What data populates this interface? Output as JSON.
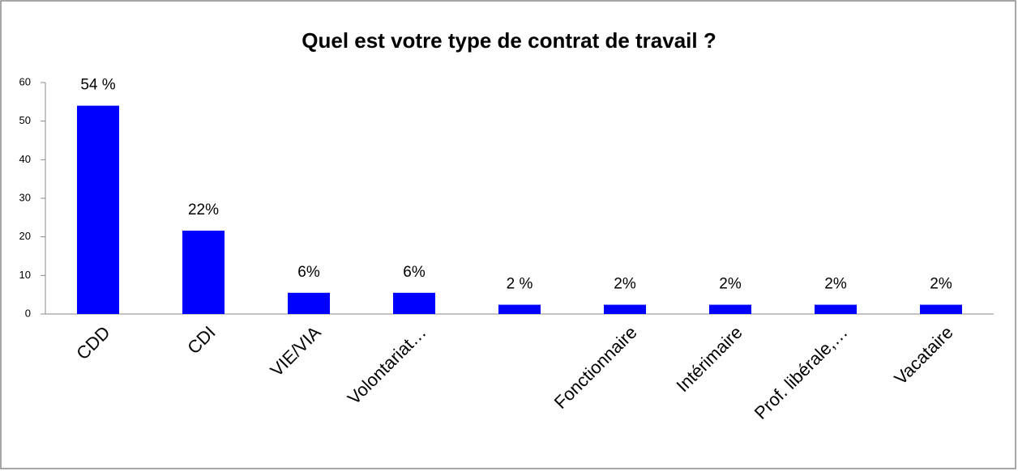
{
  "chart_data": {
    "type": "bar",
    "title": "Quel est votre type de contrat de travail ?",
    "categories": [
      "CDD",
      "CDI",
      "VIE/VIA",
      "Volontariat…",
      null,
      "Fonctionnaire",
      "Intérimaire",
      "Prof. libérale,…",
      "Vacataire"
    ],
    "values": [
      54,
      21.6,
      5.5,
      5.5,
      2.4,
      2.4,
      2.4,
      2.4,
      2.4
    ],
    "value_labels": [
      "54 %",
      "22%",
      "6%",
      "6%",
      "2 %",
      "2%",
      "2%",
      "2%",
      "2%"
    ],
    "color": "#0000ff",
    "ylim": [
      0,
      60
    ],
    "yticks": [
      0,
      10,
      20,
      30,
      40,
      50,
      60
    ],
    "grid": false
  }
}
